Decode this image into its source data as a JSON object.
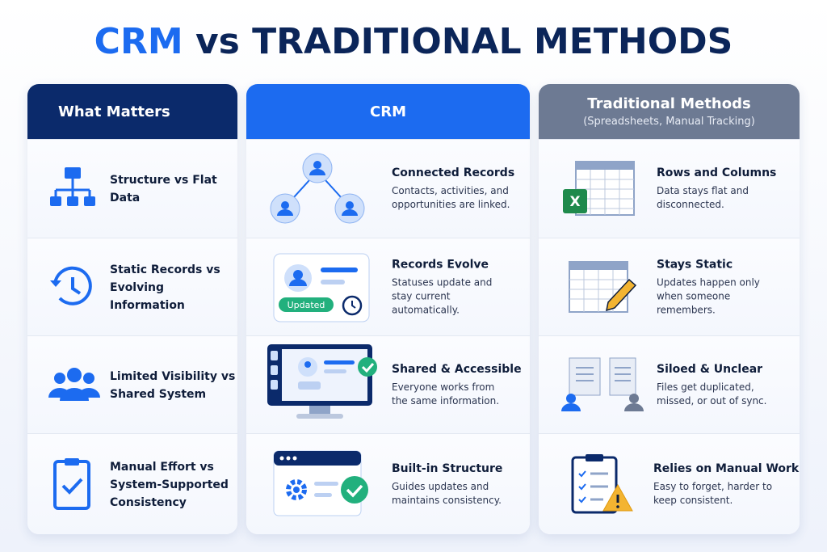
{
  "title": {
    "highlight": "CRM",
    "rest": "vs TRADITIONAL METHODS"
  },
  "columns": [
    {
      "header": "What Matters"
    },
    {
      "header": "CRM"
    },
    {
      "header": "Traditional Methods",
      "subheader": "(Spreadsheets, Manual Tracking)"
    }
  ],
  "rows": [
    {
      "matter": "Structure vs Flat Data",
      "crm": {
        "title": "Connected Records",
        "desc": "Contacts, activities, and opportunities are linked."
      },
      "traditional": {
        "title": "Rows and Columns",
        "desc": "Data stays flat and disconnected."
      }
    },
    {
      "matter": "Static Records vs Evolving Information",
      "crm": {
        "title": "Records Evolve",
        "desc": "Statuses update and stay current automatically.",
        "badge": "Updated"
      },
      "traditional": {
        "title": "Stays Static",
        "desc": "Updates happen only when someone remembers."
      }
    },
    {
      "matter": "Limited Visibility vs Shared System",
      "crm": {
        "title": "Shared & Accessible",
        "desc": "Everyone works from the same information."
      },
      "traditional": {
        "title": "Siloed & Unclear",
        "desc": "Files get duplicated, missed, or out of sync."
      }
    },
    {
      "matter": "Manual Effort vs System-Supported Consistency",
      "crm": {
        "title": "Built-in Structure",
        "desc": "Guides updates and maintains consistency."
      },
      "traditional": {
        "title": "Relies on Manual Work",
        "desc": "Easy to forget, harder to keep consistent."
      }
    }
  ]
}
